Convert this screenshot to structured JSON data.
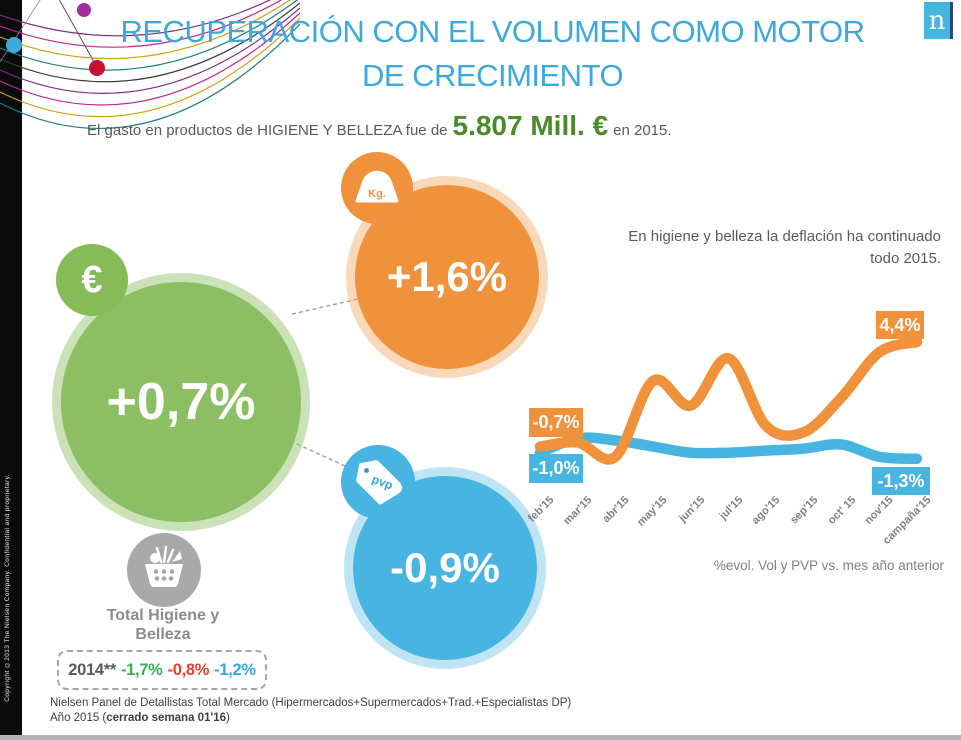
{
  "slide": {
    "title_line1": "RECUPERACIÓN CON EL VOLUMEN COMO MOTOR",
    "title_line2": "DE CRECIMIENTO",
    "subtitle": {
      "prefix": "El gasto en productos de HIGIENE Y BELLEZA fue de",
      "highlight": "5.807 Mill. €",
      "suffix": "en 2015."
    },
    "insight_text": "En higiene y belleza la deflación ha continuado todo 2015.",
    "copyright": "Copyright ©2013 The Nielsen Company. Confidential and proprietary.",
    "footnote_line1": "Nielsen Panel de Detallistas Total Mercado (Hipermercados+Supermercados+Trad.+Especialistas DP)",
    "footnote_line2_prefix": "Año 2015 (",
    "footnote_line2_bold": "cerrado semana 01'16",
    "footnote_line2_suffix": ")",
    "logo_letter": "n"
  },
  "bubbles": {
    "value": {
      "label": "+0,7%",
      "icon": "euro-icon",
      "icon_glyph": "€",
      "color": "#8CBF63"
    },
    "volume": {
      "label": "+1,6%",
      "icon": "kg-weight-icon",
      "icon_text": "Kg.",
      "color": "#F0913C"
    },
    "price": {
      "label": "-0,9%",
      "icon": "pvp-tag-icon",
      "icon_text": "pvp",
      "color": "#47B4E1"
    }
  },
  "total": {
    "line1": "Total Higiene y",
    "line2": "Belleza",
    "icon": "shopping-basket-icon"
  },
  "year_box": {
    "label": "2014**",
    "values": [
      {
        "text": "-1,7%",
        "color": "#3BAE49"
      },
      {
        "text": "-0,8%",
        "color": "#E8402F"
      },
      {
        "text": "-1,2%",
        "color": "#35A8E0"
      }
    ]
  },
  "chart_data": {
    "type": "line",
    "title": "En higiene y belleza la deflación ha continuado todo 2015.",
    "caption": "%evol. Vol y PVP vs. mes año anterior",
    "x_labels": [
      "feb'15",
      "mar'15",
      "abr'15",
      "may'15",
      "jun'15",
      "jul'15",
      "ago'15",
      "sep'15",
      "oct' 15",
      "nov'15",
      "campaña'15"
    ],
    "ylim": [
      -2,
      5
    ],
    "grid": false,
    "legend": "none",
    "series": [
      {
        "name": "Vol",
        "color": "#F0913C",
        "values": [
          -0.7,
          -0.5,
          -1.2,
          2.5,
          1.3,
          3.6,
          0.3,
          0.0,
          1.7,
          3.9,
          4.4
        ]
      },
      {
        "name": "PVP",
        "color": "#47B4E1",
        "values": [
          -1.0,
          -0.3,
          -0.4,
          -0.7,
          -1.0,
          -1.0,
          -0.9,
          -0.8,
          -0.6,
          -1.2,
          -1.3
        ]
      }
    ],
    "callouts": [
      {
        "text": "-0,7%",
        "series": "Vol",
        "position": "start"
      },
      {
        "text": "-1,0%",
        "series": "PVP",
        "position": "start"
      },
      {
        "text": "4,4%",
        "series": "Vol",
        "position": "end"
      },
      {
        "text": "-1,3%",
        "series": "PVP",
        "position": "end"
      }
    ]
  },
  "colors": {
    "title_blue": "#3DA8DC",
    "highlight_green": "#4A8B2B",
    "bubble_green": "#8CBF63",
    "bubble_orange": "#F0913C",
    "bubble_blue": "#47B4E1",
    "basket_gray": "#A9A9A9",
    "text_gray": "#595959",
    "value_green": "#3BAE49",
    "value_red": "#E8402F",
    "value_blue": "#35A8E0",
    "bottom_bar_gray": "#B3B3B3"
  }
}
